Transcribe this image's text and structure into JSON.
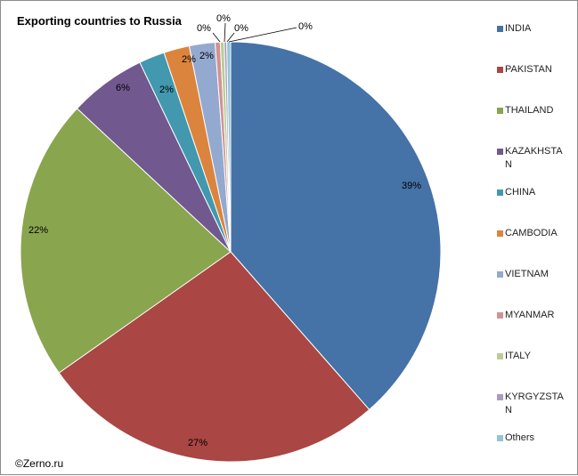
{
  "chart_data": {
    "type": "pie",
    "title": "Exporting countries to Russia",
    "categories": [
      "INDIA",
      "PAKISTAN",
      "THAILAND",
      "KAZAKHSTAN",
      "CHINA",
      "CAMBODIA",
      "VIETNAM",
      "MYANMAR",
      "ITALY",
      "KYRGYZSTAN",
      "Others"
    ],
    "values": [
      39,
      27,
      22,
      6,
      2,
      2,
      2,
      0.4,
      0.3,
      0.2,
      0.3
    ],
    "data_labels": [
      "39%",
      "27%",
      "22%",
      "6%",
      "2%",
      "2%",
      "2%",
      "0%",
      "0%",
      "0%",
      "0%"
    ],
    "colors": [
      "#4572A7",
      "#AA4643",
      "#89A54E",
      "#71588F",
      "#4198AF",
      "#DB843D",
      "#93A9CF",
      "#D19392",
      "#B9CD96",
      "#A99BBD",
      "#92C5D5"
    ],
    "legend_position": "right"
  },
  "legend": {
    "items": [
      {
        "label": "INDIA"
      },
      {
        "label": "PAKISTAN"
      },
      {
        "label": "THAILAND"
      },
      {
        "label": "KAZAKHSTA\nN"
      },
      {
        "label": "CHINA"
      },
      {
        "label": "CAMBODIA"
      },
      {
        "label": "VIETNAM"
      },
      {
        "label": "MYANMAR"
      },
      {
        "label": "ITALY"
      },
      {
        "label": "KYRGYZSTA\nN"
      },
      {
        "label": "Others"
      }
    ]
  },
  "credit": "©Zerno.ru"
}
